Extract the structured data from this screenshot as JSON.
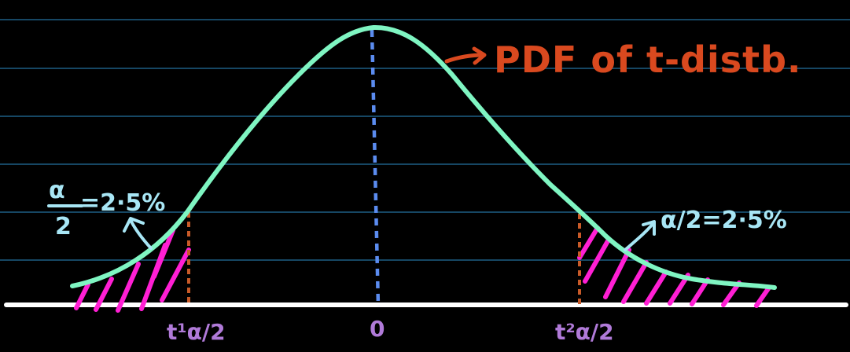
{
  "title": "PDF of t-distb.",
  "left_tail": {
    "numerator": "α",
    "denominator": "2",
    "value": "=2·5%"
  },
  "right_tail": {
    "label": "α/2=2·5%"
  },
  "axis_labels": {
    "left": "t¹α/2",
    "center": "0",
    "right": "t²α/2"
  },
  "colors": {
    "background": "#000000",
    "ruled_lines": "#1e5f86",
    "curve": "#7ff5c2",
    "center_line": "#5b8cf0",
    "critical_lines": "#c85a28",
    "hatch": "#ff1fd4",
    "baseline": "#ffffff",
    "title": "#d9491f",
    "alpha_text": "#a8e6f5",
    "axis_text": "#b07ad8"
  }
}
